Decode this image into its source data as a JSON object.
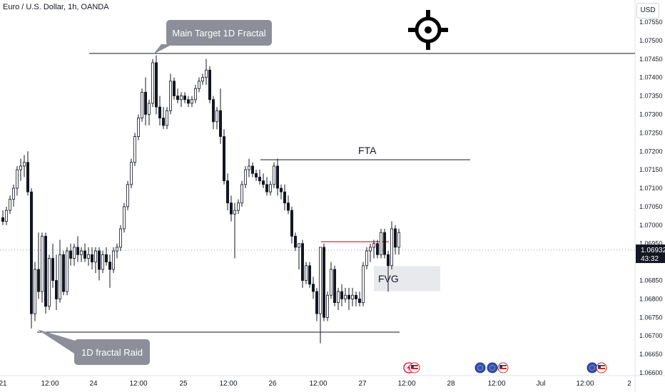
{
  "header": {
    "title": "Euro / U.S. Dollar, 1h, OANDA",
    "currency": "USD"
  },
  "price_tag": {
    "price": "1.06932",
    "countdown": "43:32"
  },
  "annotations": {
    "main_target": "Main Target 1D Fractal",
    "fta": "FTA",
    "fvg": "FVG",
    "raid": "1D fractal Raid"
  },
  "icons": {
    "target": "crosshair-target-icon",
    "events": [
      "lightning-icon",
      "us-flag-icon",
      "eu-flag-icon"
    ]
  },
  "colors": {
    "candle": "#131722",
    "up_fill": "#ffffff",
    "level_line": "#131722",
    "red_line": "#e0254a",
    "callout": "#8c8f99",
    "fvg_box": "#e8e9ec",
    "price_tag": "#131722"
  },
  "chart_data": {
    "type": "candlestick",
    "x_tick_labels": [
      "21",
      "12:00",
      "24",
      "12:00",
      "25",
      "12:00",
      "26",
      "12:00",
      "27",
      "12:00",
      "28",
      "12:00",
      "Jul",
      "12:00",
      "2"
    ],
    "y_tick_labels": [
      "1.07550",
      "1.07500",
      "1.07450",
      "1.07400",
      "1.07350",
      "1.07300",
      "1.07250",
      "1.07200",
      "1.07150",
      "1.07100",
      "1.07050",
      "1.07000",
      "1.06950",
      "1.06850",
      "1.06800",
      "1.06750",
      "1.06700",
      "1.06650",
      "1.06600"
    ],
    "ylim": [
      1.066,
      1.0758
    ],
    "levels": {
      "main_target": 1.07465,
      "fta": 1.07177,
      "raid_low": 1.0671,
      "red_line": 1.06955,
      "current_price": 1.06932
    },
    "fvg_zone": [
      1.06825,
      1.06885
    ],
    "candles": [
      [
        1.0702,
        1.0704,
        1.07,
        1.0701
      ],
      [
        1.0701,
        1.0705,
        1.07,
        1.0704
      ],
      [
        1.0704,
        1.0708,
        1.0703,
        1.0707
      ],
      [
        1.0707,
        1.0711,
        1.0705,
        1.071
      ],
      [
        1.071,
        1.0716,
        1.0708,
        1.0715
      ],
      [
        1.0715,
        1.0718,
        1.0712,
        1.0716
      ],
      [
        1.0716,
        1.0719,
        1.0713,
        1.0717
      ],
      [
        1.0717,
        1.072,
        1.0708,
        1.0709
      ],
      [
        1.0709,
        1.071,
        1.0672,
        1.0676
      ],
      [
        1.0676,
        1.069,
        1.0674,
        1.0688
      ],
      [
        1.0688,
        1.0698,
        1.068,
        1.0682
      ],
      [
        1.0682,
        1.0698,
        1.0679,
        1.0697
      ],
      [
        1.0697,
        1.0698,
        1.0676,
        1.0678
      ],
      [
        1.0678,
        1.0692,
        1.0677,
        1.0691
      ],
      [
        1.0691,
        1.0695,
        1.0683,
        1.0685
      ],
      [
        1.0685,
        1.0692,
        1.0677,
        1.068
      ],
      [
        1.068,
        1.0696,
        1.0679,
        1.0692
      ],
      [
        1.0692,
        1.0693,
        1.0681,
        1.0682
      ],
      [
        1.0682,
        1.0694,
        1.0681,
        1.0693
      ],
      [
        1.0693,
        1.0695,
        1.0689,
        1.0691
      ],
      [
        1.0691,
        1.0695,
        1.0689,
        1.0694
      ],
      [
        1.0694,
        1.0697,
        1.069,
        1.0692
      ],
      [
        1.0692,
        1.0694,
        1.069,
        1.0693
      ],
      [
        1.0693,
        1.0695,
        1.069,
        1.0691
      ],
      [
        1.0691,
        1.0694,
        1.0689,
        1.0692
      ],
      [
        1.0692,
        1.0694,
        1.0688,
        1.069
      ],
      [
        1.069,
        1.0694,
        1.0687,
        1.0693
      ],
      [
        1.0693,
        1.0694,
        1.0685,
        1.0688
      ],
      [
        1.0688,
        1.0693,
        1.0687,
        1.0692
      ],
      [
        1.0692,
        1.0694,
        1.0689,
        1.069
      ],
      [
        1.069,
        1.0692,
        1.0683,
        1.0688
      ],
      [
        1.0688,
        1.0694,
        1.0687,
        1.0693
      ],
      [
        1.0693,
        1.0695,
        1.0691,
        1.0694
      ],
      [
        1.0694,
        1.07,
        1.0693,
        1.0699
      ],
      [
        1.0699,
        1.0706,
        1.0698,
        1.0705
      ],
      [
        1.0705,
        1.0712,
        1.0704,
        1.0711
      ],
      [
        1.0711,
        1.0718,
        1.071,
        1.0717
      ],
      [
        1.0717,
        1.0725,
        1.0716,
        1.0724
      ],
      [
        1.0724,
        1.073,
        1.0723,
        1.0729
      ],
      [
        1.0729,
        1.0737,
        1.0728,
        1.0736
      ],
      [
        1.0736,
        1.074,
        1.0727,
        1.073
      ],
      [
        1.073,
        1.0734,
        1.0727,
        1.0733
      ],
      [
        1.0733,
        1.0745,
        1.0732,
        1.0744
      ],
      [
        1.0744,
        1.0746,
        1.073,
        1.0732
      ],
      [
        1.0732,
        1.0735,
        1.0727,
        1.0729
      ],
      [
        1.0729,
        1.0732,
        1.0726,
        1.0727
      ],
      [
        1.0727,
        1.0732,
        1.0726,
        1.0731
      ],
      [
        1.0731,
        1.0741,
        1.073,
        1.0739
      ],
      [
        1.0739,
        1.074,
        1.0734,
        1.0735
      ],
      [
        1.0735,
        1.0737,
        1.0733,
        1.0734
      ],
      [
        1.0734,
        1.0736,
        1.0732,
        1.0735
      ],
      [
        1.0735,
        1.0736,
        1.0733,
        1.0734
      ],
      [
        1.0734,
        1.0735,
        1.0732,
        1.0733
      ],
      [
        1.0733,
        1.0735,
        1.0732,
        1.0734
      ],
      [
        1.0734,
        1.0738,
        1.0733,
        1.0737
      ],
      [
        1.0737,
        1.074,
        1.0736,
        1.0739
      ],
      [
        1.0739,
        1.0741,
        1.0738,
        1.074
      ],
      [
        1.074,
        1.0745,
        1.0738,
        1.0742
      ],
      [
        1.0742,
        1.0743,
        1.0733,
        1.0734
      ],
      [
        1.0734,
        1.0735,
        1.0726,
        1.0728
      ],
      [
        1.0728,
        1.0732,
        1.0726,
        1.0731
      ],
      [
        1.0731,
        1.0737,
        1.0722,
        1.0724
      ],
      [
        1.0724,
        1.0726,
        1.0711,
        1.0712
      ],
      [
        1.0712,
        1.0714,
        1.0704,
        1.0706
      ],
      [
        1.0706,
        1.0708,
        1.0701,
        1.0703
      ],
      [
        1.0703,
        1.0706,
        1.0691,
        1.0704
      ],
      [
        1.0704,
        1.0707,
        1.0703,
        1.0706
      ],
      [
        1.0706,
        1.0712,
        1.0705,
        1.0711
      ],
      [
        1.0711,
        1.0716,
        1.071,
        1.0715
      ],
      [
        1.0715,
        1.0718,
        1.0713,
        1.0716
      ],
      [
        1.0716,
        1.0717,
        1.0713,
        1.0714
      ],
      [
        1.0714,
        1.0715,
        1.0712,
        1.0713
      ],
      [
        1.0713,
        1.0715,
        1.0711,
        1.0712
      ],
      [
        1.0712,
        1.0714,
        1.071,
        1.0711
      ],
      [
        1.0711,
        1.0713,
        1.0708,
        1.0709
      ],
      [
        1.0709,
        1.0712,
        1.0708,
        1.0711
      ],
      [
        1.0711,
        1.0717,
        1.071,
        1.0716
      ],
      [
        1.0716,
        1.0718,
        1.0708,
        1.071
      ],
      [
        1.071,
        1.0711,
        1.0707,
        1.0709
      ],
      [
        1.0709,
        1.0711,
        1.0704,
        1.0706
      ],
      [
        1.0706,
        1.0708,
        1.0703,
        1.0704
      ],
      [
        1.0704,
        1.0705,
        1.0695,
        1.0697
      ],
      [
        1.0697,
        1.0698,
        1.0693,
        1.0694
      ],
      [
        1.0694,
        1.0695,
        1.0688,
        1.0695
      ],
      [
        1.0695,
        1.0696,
        1.0683,
        1.0685
      ],
      [
        1.0685,
        1.069,
        1.0684,
        1.0689
      ],
      [
        1.0689,
        1.069,
        1.0683,
        1.0684
      ],
      [
        1.0684,
        1.0686,
        1.068,
        1.0682
      ],
      [
        1.0682,
        1.0683,
        1.0674,
        1.0676
      ],
      [
        1.0676,
        1.0694,
        1.0668,
        1.0694
      ],
      [
        1.0694,
        1.0695,
        1.0674,
        1.0675
      ],
      [
        1.0675,
        1.0682,
        1.0674,
        1.0681
      ],
      [
        1.0681,
        1.069,
        1.068,
        1.0688
      ],
      [
        1.0688,
        1.0689,
        1.0678,
        1.0679
      ],
      [
        1.0679,
        1.0683,
        1.0677,
        1.0682
      ],
      [
        1.0682,
        1.0684,
        1.0678,
        1.068
      ],
      [
        1.068,
        1.0683,
        1.0679,
        1.0681
      ],
      [
        1.0681,
        1.0683,
        1.0677,
        1.068
      ],
      [
        1.068,
        1.0683,
        1.0678,
        1.0681
      ],
      [
        1.0681,
        1.0682,
        1.0678,
        1.068
      ],
      [
        1.068,
        1.0682,
        1.0678,
        1.0679
      ],
      [
        1.0679,
        1.069,
        1.0678,
        1.0689
      ],
      [
        1.0689,
        1.0694,
        1.0688,
        1.0693
      ],
      [
        1.0693,
        1.0695,
        1.069,
        1.0694
      ],
      [
        1.0694,
        1.0696,
        1.0691,
        1.0695
      ],
      [
        1.0695,
        1.0696,
        1.0691,
        1.0692
      ],
      [
        1.0692,
        1.0699,
        1.0691,
        1.0698
      ],
      [
        1.0698,
        1.0699,
        1.0691,
        1.0692
      ],
      [
        1.0692,
        1.0693,
        1.0682,
        1.0689
      ],
      [
        1.0689,
        1.0701,
        1.0688,
        1.0699
      ],
      [
        1.0699,
        1.07,
        1.0692,
        1.0694
      ],
      [
        1.0694,
        1.0699,
        1.0692,
        1.0698
      ]
    ]
  }
}
